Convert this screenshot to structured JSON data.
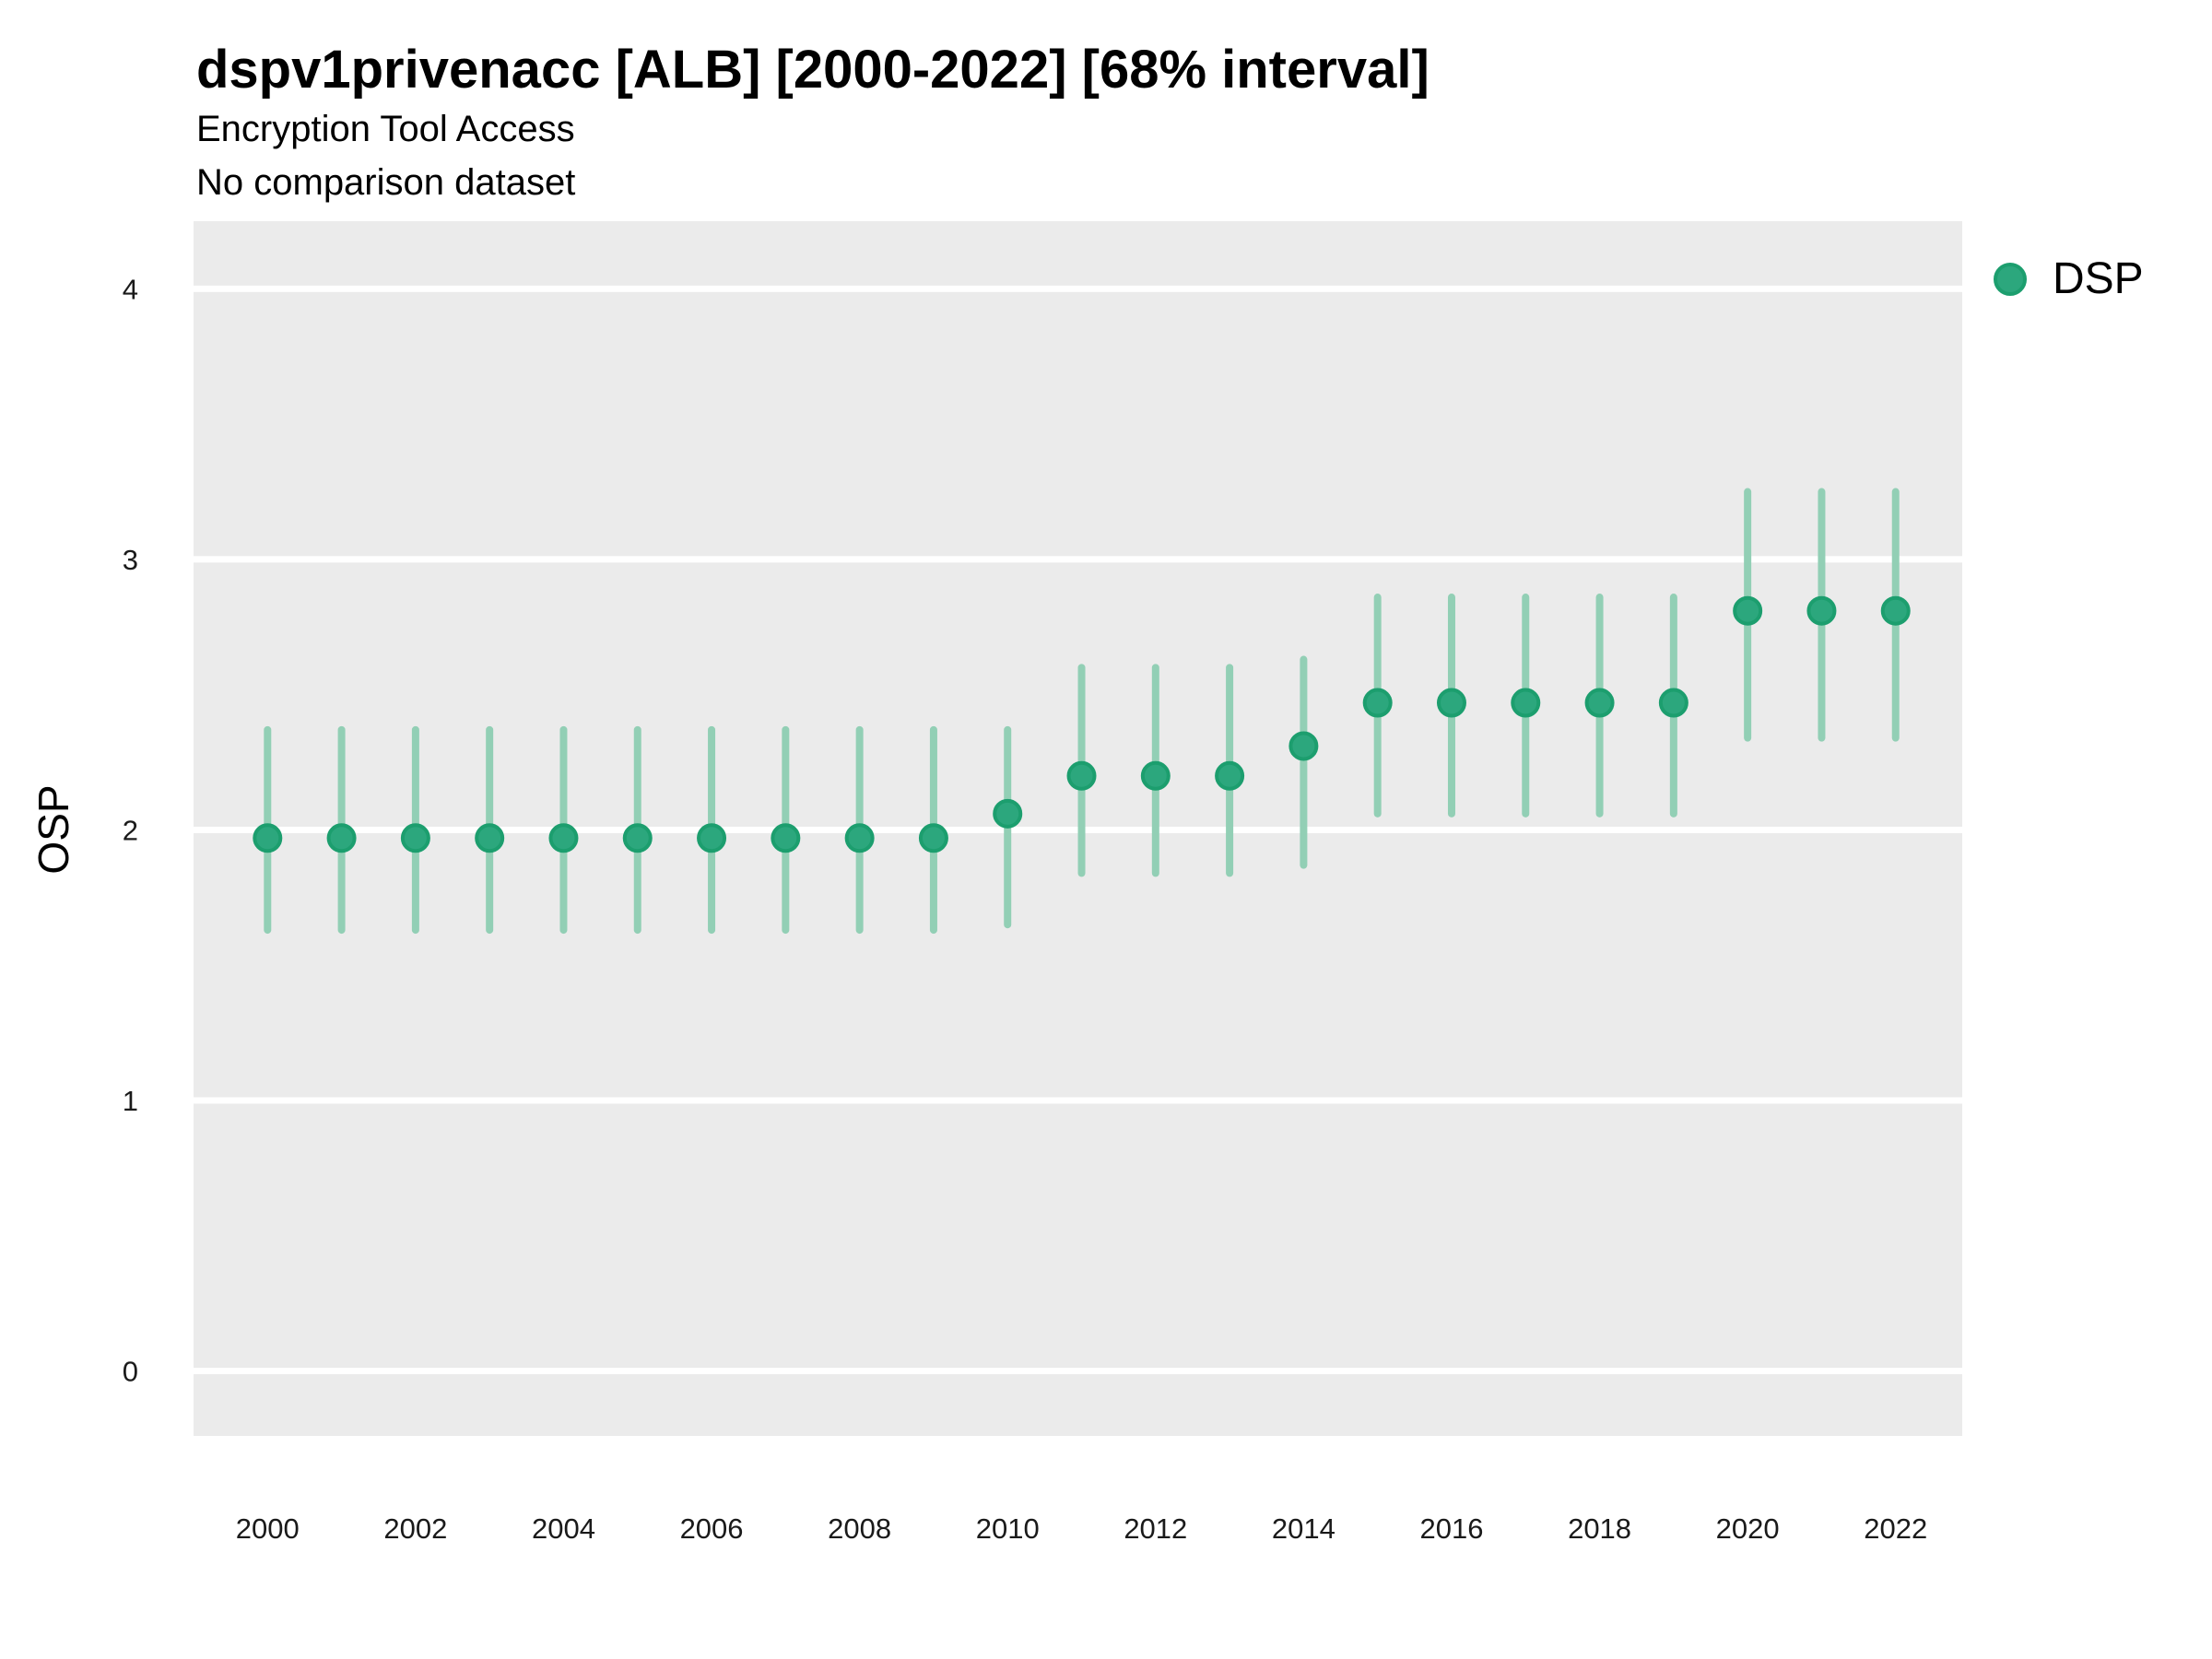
{
  "chart": {
    "title": "dspv1privenacc [ALB] [2000-2022] [68% interval]",
    "subtitle": "Encryption Tool Access",
    "note": "No comparison dataset",
    "ylabel": "OSP",
    "legend": {
      "label": "DSP",
      "position": "top-right"
    }
  },
  "chart_data": {
    "type": "scatter",
    "variant": "point-with-interval",
    "interval": "68%",
    "title": "dspv1privenacc [ALB] [2000-2022] [68% interval]",
    "subtitle": "Encryption Tool Access",
    "note": "No comparison dataset",
    "xlabel": "",
    "ylabel": "OSP",
    "legend_position": "top-right",
    "grid": "major-y-only, white lines on gray panel",
    "x": [
      2000,
      2001,
      2002,
      2003,
      2004,
      2005,
      2006,
      2007,
      2008,
      2009,
      2010,
      2011,
      2012,
      2013,
      2014,
      2015,
      2016,
      2017,
      2018,
      2019,
      2020,
      2021,
      2022
    ],
    "series": [
      {
        "name": "DSP",
        "values": [
          1.97,
          1.97,
          1.97,
          1.97,
          1.97,
          1.97,
          1.97,
          1.97,
          1.97,
          1.97,
          2.06,
          2.2,
          2.2,
          2.2,
          2.31,
          2.47,
          2.47,
          2.47,
          2.47,
          2.47,
          2.81,
          2.81,
          2.81
        ],
        "lower": [
          1.63,
          1.63,
          1.63,
          1.63,
          1.63,
          1.63,
          1.63,
          1.63,
          1.63,
          1.63,
          1.65,
          1.84,
          1.84,
          1.84,
          1.87,
          2.06,
          2.06,
          2.06,
          2.06,
          2.06,
          2.34,
          2.34,
          2.34
        ],
        "upper": [
          2.37,
          2.37,
          2.37,
          2.37,
          2.37,
          2.37,
          2.37,
          2.37,
          2.37,
          2.37,
          2.37,
          2.6,
          2.6,
          2.6,
          2.63,
          2.86,
          2.86,
          2.86,
          2.86,
          2.86,
          3.25,
          3.25,
          3.25
        ]
      }
    ],
    "x_ticks": [
      2000,
      2002,
      2004,
      2006,
      2008,
      2010,
      2012,
      2014,
      2016,
      2018,
      2020,
      2022
    ],
    "y_ticks": [
      0,
      1,
      2,
      3,
      4
    ],
    "xlim": [
      1999.0,
      2022.9
    ],
    "ylim": [
      -0.24,
      4.25
    ],
    "colors": {
      "point_fill": "#2CA77D",
      "point_stroke": "#1C9E6E",
      "interval_line": "#92CFB5",
      "panel_bg": "#EBEBEB",
      "gridline": "#FFFFFF",
      "tick_text": "#1A1A1A"
    }
  }
}
